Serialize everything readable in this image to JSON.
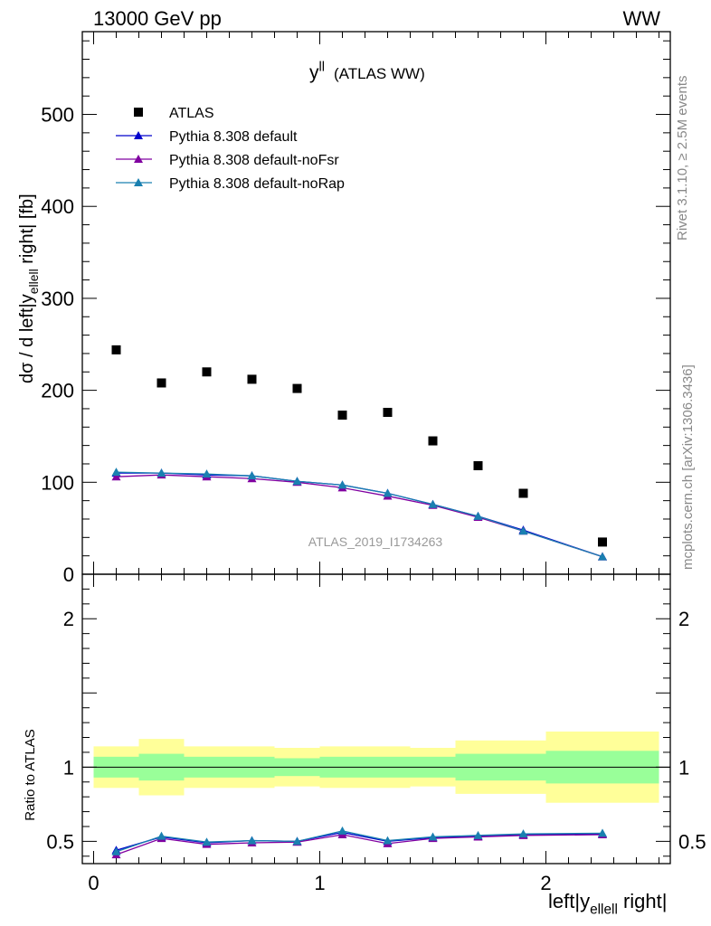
{
  "header": {
    "left": "13000 GeV pp",
    "right": "WW"
  },
  "side_labels": {
    "rivet": "Rivet 3.1.10, ≥ 2.5M events",
    "mcplots": "mcplots.cern.ch [arXiv:1306.3436]"
  },
  "chart_data": [
    {
      "type": "scatter",
      "title": "y^ll (ATLAS WW)",
      "watermark": "ATLAS_2019_I1734263",
      "ylabel": "dσ / d left|y_ellell right| [fb]",
      "xlabel": "",
      "xlim": [
        -0.05,
        2.55
      ],
      "ylim": [
        0,
        590
      ],
      "y_ticks": [
        0,
        100,
        200,
        300,
        400,
        500
      ],
      "legend_position": "top-left",
      "colors": {
        "data": "#000000",
        "default": "#0000cc",
        "noFsr": "#8000a0",
        "noRap": "#1a80b0"
      },
      "x": [
        0.1,
        0.3,
        0.5,
        0.7,
        0.9,
        1.1,
        1.3,
        1.5,
        1.7,
        1.9,
        2.25
      ],
      "series": [
        {
          "name": "ATLAS",
          "values": [
            244,
            208,
            220,
            212,
            202,
            173,
            176,
            145,
            118,
            88,
            35
          ]
        },
        {
          "name": "Pythia 8.308 default",
          "values": [
            110,
            110,
            108,
            107,
            101,
            97,
            88,
            76,
            63,
            48,
            19
          ]
        },
        {
          "name": "Pythia 8.308 default-noFsr",
          "values": [
            106,
            108,
            106,
            104,
            100,
            94,
            85,
            75,
            62,
            47,
            19
          ]
        },
        {
          "name": "Pythia 8.308 default-noRap",
          "values": [
            111,
            110,
            109,
            107,
            101,
            97,
            88,
            76,
            63,
            47,
            19
          ]
        }
      ]
    },
    {
      "type": "line",
      "ylabel": "Ratio to ATLAS",
      "xlabel": "left|y_ellell right|",
      "xlim": [
        -0.05,
        2.55
      ],
      "ylim": [
        0.35,
        2.3
      ],
      "y_ticks": [
        0.5,
        1,
        2
      ],
      "x_ticks": [
        0,
        1,
        2
      ],
      "band_edges": [
        0,
        0.2,
        0.4,
        0.6,
        0.8,
        1.0,
        1.2,
        1.4,
        1.6,
        1.8,
        2.0,
        2.5
      ],
      "inner_band": [
        [
          0.93,
          1.07
        ],
        [
          0.91,
          1.09
        ],
        [
          0.93,
          1.07
        ],
        [
          0.93,
          1.07
        ],
        [
          0.94,
          1.06
        ],
        [
          0.93,
          1.07
        ],
        [
          0.93,
          1.07
        ],
        [
          0.93,
          1.07
        ],
        [
          0.91,
          1.09
        ],
        [
          0.91,
          1.09
        ],
        [
          0.89,
          1.11
        ]
      ],
      "outer_band": [
        [
          0.86,
          1.14
        ],
        [
          0.81,
          1.19
        ],
        [
          0.86,
          1.14
        ],
        [
          0.86,
          1.14
        ],
        [
          0.87,
          1.13
        ],
        [
          0.86,
          1.14
        ],
        [
          0.86,
          1.14
        ],
        [
          0.87,
          1.13
        ],
        [
          0.82,
          1.18
        ],
        [
          0.82,
          1.18
        ],
        [
          0.76,
          1.24
        ]
      ],
      "x": [
        0.1,
        0.3,
        0.5,
        0.7,
        0.9,
        1.1,
        1.3,
        1.5,
        1.7,
        1.9,
        2.25
      ],
      "series": [
        {
          "name": "Pythia 8.308 default",
          "values": [
            0.44,
            0.53,
            0.49,
            0.505,
            0.5,
            0.56,
            0.5,
            0.525,
            0.535,
            0.545,
            0.55
          ]
        },
        {
          "name": "Pythia 8.308 default-noFsr",
          "values": [
            0.41,
            0.52,
            0.48,
            0.49,
            0.495,
            0.545,
            0.485,
            0.52,
            0.53,
            0.54,
            0.545
          ]
        },
        {
          "name": "Pythia 8.308 default-noRap",
          "values": [
            0.43,
            0.535,
            0.495,
            0.505,
            0.5,
            0.57,
            0.505,
            0.53,
            0.54,
            0.55,
            0.555
          ]
        }
      ]
    }
  ]
}
